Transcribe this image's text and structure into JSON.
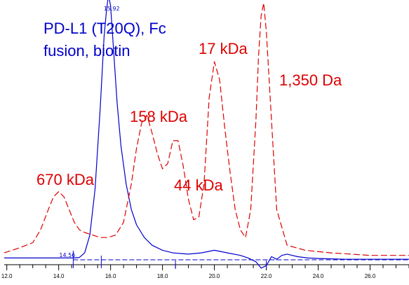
{
  "chart_data": {
    "type": "line",
    "title_lines": [
      "PD-L1 (T20Q), Fc",
      "fusion, biotin"
    ],
    "title_color": "#0000cc",
    "xlim": [
      11.9,
      27.5
    ],
    "ylim": [
      0,
      1
    ],
    "x_ticks": [
      "12.0",
      "14.0",
      "16.0",
      "18.0",
      "20.0",
      "22.0",
      "24.0",
      "26.0"
    ],
    "x_tick_values": [
      12,
      14,
      16,
      18,
      20,
      22,
      24,
      26
    ],
    "grid": false,
    "series": [
      {
        "color": "#0000cc",
        "style": "solid",
        "peak_labels": [
          {
            "text": "15.92",
            "x": 15.92
          },
          {
            "text": "14.56",
            "x": 14.56
          }
        ],
        "x": [
          11.9,
          13.0,
          14.0,
          14.56,
          14.8,
          15.0,
          15.2,
          15.4,
          15.6,
          15.75,
          15.85,
          15.92,
          16.0,
          16.1,
          16.25,
          16.4,
          16.6,
          16.8,
          17.0,
          17.3,
          17.6,
          18.0,
          18.4,
          19.0,
          19.5,
          20.0,
          20.5,
          21.0,
          21.3,
          21.6,
          21.8,
          22.0,
          22.2,
          22.4,
          22.6,
          22.8,
          23.2,
          23.6,
          24.0,
          25.0,
          26.0,
          27.5
        ],
        "y": [
          0.01,
          0.01,
          0.01,
          0.01,
          0.012,
          0.03,
          0.1,
          0.28,
          0.6,
          0.88,
          0.99,
          1.04,
          1.0,
          0.85,
          0.62,
          0.45,
          0.3,
          0.2,
          0.14,
          0.09,
          0.06,
          0.04,
          0.03,
          0.025,
          0.03,
          0.04,
          0.03,
          0.02,
          0.01,
          -0.005,
          -0.03,
          -0.02,
          0.015,
          0.005,
          0.02,
          0.025,
          0.015,
          0.01,
          0.008,
          0.005,
          0.005,
          0.005
        ]
      },
      {
        "color": "#dd0000",
        "style": "dashed",
        "peak_labels": [
          {
            "text": "670 kDa",
            "x": 14.0
          },
          {
            "text": "158 kDa",
            "x": 17.3
          },
          {
            "text": "44 kDa",
            "x": 18.4
          },
          {
            "text": "17 kDa",
            "x": 19.6
          },
          {
            "text": "1,350 Da",
            "x": 21.8
          }
        ],
        "x": [
          11.9,
          12.5,
          13.0,
          13.3,
          13.6,
          13.8,
          14.0,
          14.2,
          14.4,
          14.6,
          14.8,
          15.0,
          15.3,
          15.6,
          15.9,
          16.2,
          16.5,
          16.8,
          17.0,
          17.2,
          17.4,
          17.6,
          17.8,
          18.0,
          18.2,
          18.4,
          18.6,
          18.8,
          19.0,
          19.2,
          19.4,
          19.6,
          19.8,
          20.0,
          20.2,
          20.4,
          20.6,
          20.8,
          21.0,
          21.2,
          21.4,
          21.6,
          21.7,
          21.8,
          21.9,
          22.0,
          22.2,
          22.4,
          22.8,
          23.5,
          24.5,
          26.0,
          27.5
        ],
        "y": [
          0.03,
          0.05,
          0.07,
          0.12,
          0.2,
          0.25,
          0.27,
          0.25,
          0.2,
          0.15,
          0.12,
          0.11,
          0.1,
          0.09,
          0.09,
          0.1,
          0.15,
          0.3,
          0.44,
          0.54,
          0.57,
          0.5,
          0.42,
          0.36,
          0.38,
          0.47,
          0.47,
          0.37,
          0.24,
          0.16,
          0.17,
          0.3,
          0.64,
          0.78,
          0.71,
          0.52,
          0.35,
          0.2,
          0.12,
          0.09,
          0.2,
          0.55,
          0.8,
          0.96,
          1.01,
          0.9,
          0.55,
          0.2,
          0.06,
          0.04,
          0.03,
          0.02,
          0.02
        ]
      }
    ]
  }
}
